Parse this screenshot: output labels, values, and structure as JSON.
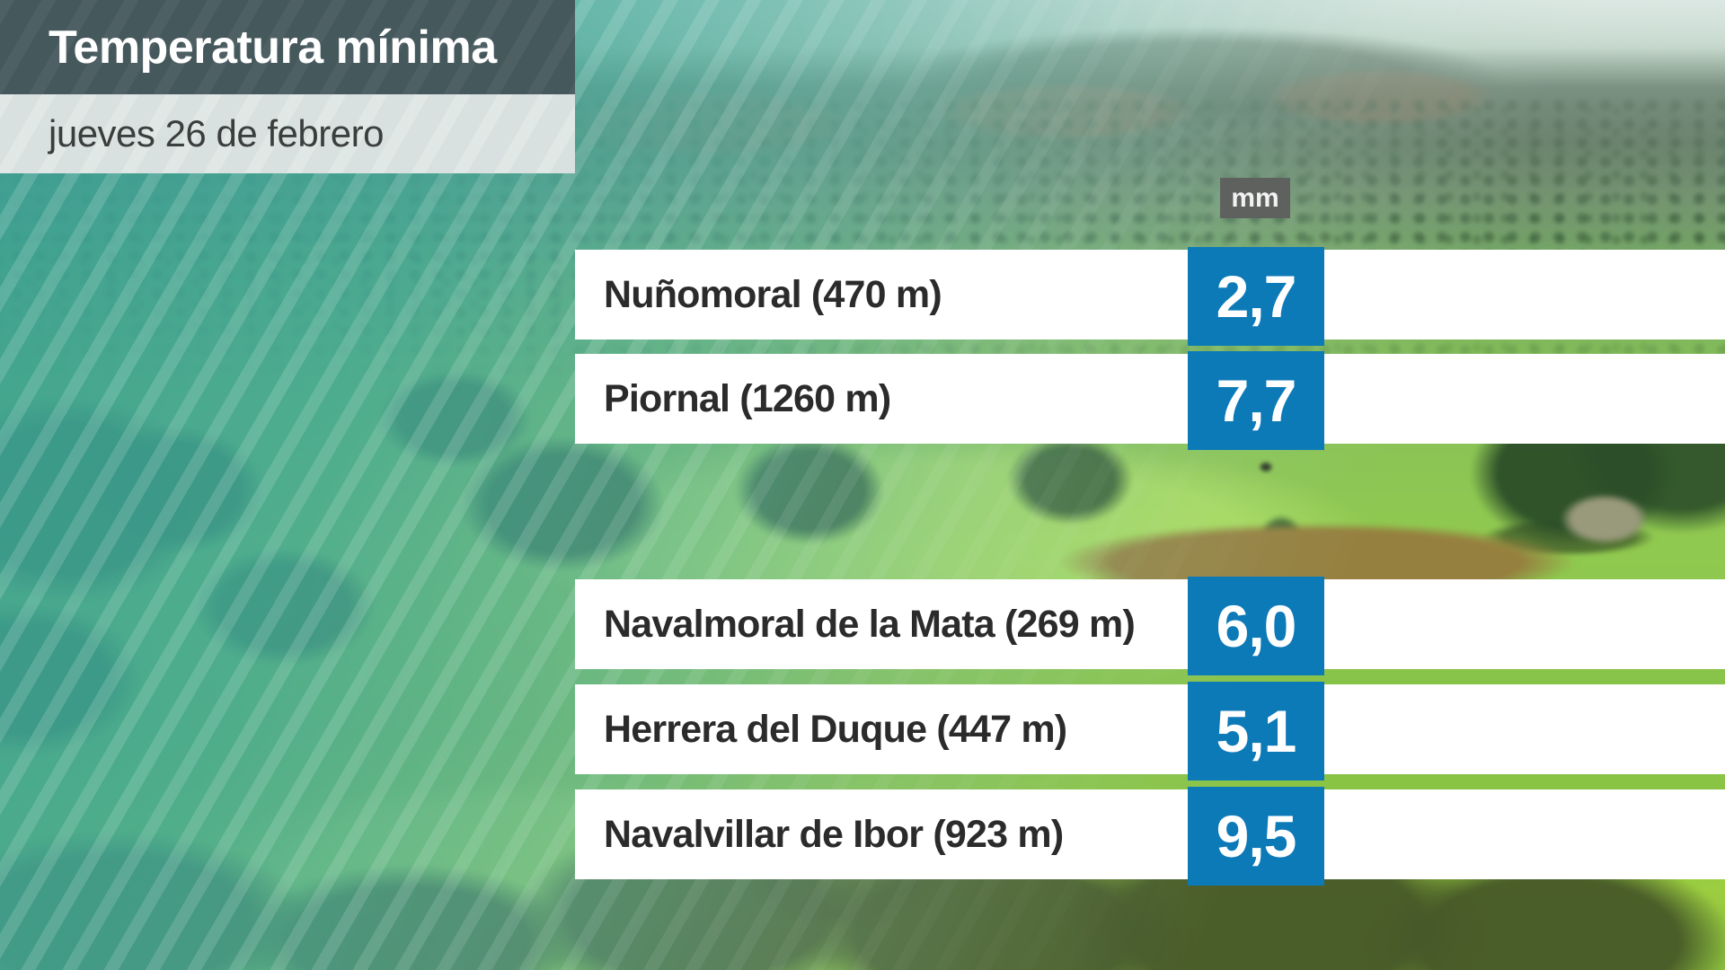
{
  "header": {
    "title": "Temperatura mínima",
    "subtitle": "jueves 26 de febrero"
  },
  "unit_badge": "mm",
  "rows": [
    {
      "label": "Nuñomoral (470 m)",
      "value": "2,7"
    },
    {
      "label": "Piornal (1260 m)",
      "value": "7,7"
    },
    {
      "label": "Navalmoral de la Mata (269 m)",
      "value": "6,0"
    },
    {
      "label": "Herrera del Duque (447 m)",
      "value": "5,1"
    },
    {
      "label": "Navalvillar de Ibor (923 m)",
      "value": "9,5"
    }
  ],
  "colors": {
    "accent_blue": "#0d7ab8",
    "title_bg": "#45585c",
    "subtitle_bg": "#d8e1df",
    "badge_bg": "#5f615f",
    "teal_overlay": "#42a89a"
  },
  "chart_data": {
    "type": "table",
    "title": "Temperatura mínima",
    "subtitle": "jueves 26 de febrero",
    "unit": "mm",
    "categories": [
      "Nuñomoral (470 m)",
      "Piornal (1260 m)",
      "Navalmoral de la Mata (269 m)",
      "Herrera del Duque (447 m)",
      "Navalvillar de Ibor (923 m)"
    ],
    "values": [
      2.7,
      7.7,
      6.0,
      5.1,
      9.5
    ]
  }
}
